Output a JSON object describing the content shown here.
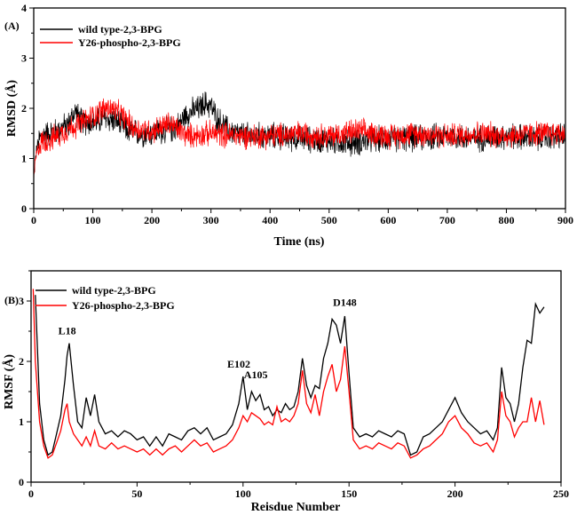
{
  "chart_data": [
    {
      "type": "line",
      "panel_label": "(A)",
      "xlabel": "Time (ns)",
      "ylabel": "RMSD (Å)",
      "xlim": [
        0,
        900
      ],
      "ylim": [
        0,
        4
      ],
      "xticks": [
        0,
        100,
        200,
        300,
        400,
        500,
        600,
        700,
        800,
        900
      ],
      "yticks": [
        0,
        1,
        2,
        3,
        4
      ],
      "legend_position": "top-left",
      "series": [
        {
          "name": "wild type-2,3-BPG",
          "color": "#000000",
          "trend_x": [
            0,
            2,
            5,
            10,
            20,
            40,
            60,
            70,
            80,
            100,
            120,
            140,
            160,
            180,
            200,
            220,
            240,
            260,
            280,
            290,
            300,
            310,
            330,
            360,
            400,
            450,
            500,
            540,
            560,
            600,
            650,
            700,
            750,
            800,
            850,
            900
          ],
          "trend_y": [
            0.6,
            0.9,
            1.2,
            1.4,
            1.5,
            1.55,
            1.7,
            1.95,
            1.75,
            1.7,
            1.8,
            1.75,
            1.55,
            1.5,
            1.5,
            1.55,
            1.6,
            1.9,
            2.0,
            2.1,
            2.05,
            1.8,
            1.55,
            1.45,
            1.45,
            1.4,
            1.35,
            1.3,
            1.35,
            1.4,
            1.4,
            1.45,
            1.4,
            1.45,
            1.4,
            1.45
          ],
          "noise": 0.32
        },
        {
          "name": "Y26-phospho-2,3-BPG",
          "color": "#ff0000",
          "trend_x": [
            0,
            2,
            5,
            10,
            20,
            40,
            60,
            80,
            100,
            120,
            130,
            150,
            170,
            200,
            230,
            260,
            300,
            350,
            400,
            450,
            500,
            550,
            600,
            650,
            700,
            750,
            800,
            850,
            900
          ],
          "trend_y": [
            0.5,
            0.9,
            1.1,
            1.3,
            1.35,
            1.45,
            1.6,
            1.7,
            1.85,
            2.0,
            2.0,
            1.85,
            1.6,
            1.55,
            1.7,
            1.45,
            1.5,
            1.45,
            1.45,
            1.5,
            1.45,
            1.55,
            1.45,
            1.5,
            1.45,
            1.5,
            1.45,
            1.5,
            1.5
          ],
          "noise": 0.3
        }
      ]
    },
    {
      "type": "line",
      "panel_label": "(B)",
      "xlabel": "Reisdue Number",
      "ylabel": "RMSF (Å)",
      "xlim": [
        0,
        250
      ],
      "ylim": [
        0,
        3.5
      ],
      "xticks": [
        0,
        50,
        100,
        150,
        200,
        250
      ],
      "yticks": [
        0,
        1,
        2,
        3
      ],
      "legend_position": "top-left",
      "annotations": [
        {
          "text": "L18",
          "x": 17,
          "y": 2.45
        },
        {
          "text": "E102",
          "x": 98,
          "y": 1.9
        },
        {
          "text": "A105",
          "x": 106,
          "y": 1.72
        },
        {
          "text": "D148",
          "x": 148,
          "y": 2.92
        }
      ],
      "series": [
        {
          "name": "wild type-2,3-BPG",
          "color": "#000000",
          "x": [
            2,
            4,
            6,
            8,
            10,
            12,
            14,
            16,
            17,
            18,
            20,
            22,
            24,
            26,
            28,
            30,
            32,
            35,
            38,
            41,
            44,
            47,
            50,
            53,
            56,
            59,
            62,
            65,
            68,
            71,
            74,
            77,
            80,
            83,
            86,
            89,
            92,
            95,
            98,
            100,
            102,
            104,
            106,
            108,
            110,
            112,
            114,
            116,
            118,
            120,
            122,
            124,
            126,
            128,
            130,
            132,
            134,
            136,
            138,
            140,
            142,
            144,
            146,
            148,
            150,
            152,
            155,
            158,
            161,
            164,
            167,
            170,
            173,
            176,
            179,
            182,
            185,
            188,
            191,
            194,
            197,
            200,
            203,
            206,
            209,
            212,
            215,
            218,
            220,
            222,
            224,
            226,
            228,
            230,
            232,
            234,
            236,
            238,
            240,
            242
          ],
          "y": [
            3.1,
            1.3,
            0.7,
            0.45,
            0.5,
            0.8,
            1.1,
            1.7,
            2.1,
            2.3,
            1.6,
            1.0,
            0.9,
            1.4,
            1.1,
            1.45,
            1.0,
            0.8,
            0.85,
            0.75,
            0.85,
            0.8,
            0.7,
            0.75,
            0.6,
            0.75,
            0.6,
            0.8,
            0.75,
            0.7,
            0.85,
            0.9,
            0.8,
            0.9,
            0.7,
            0.75,
            0.8,
            0.95,
            1.3,
            1.75,
            1.2,
            1.5,
            1.35,
            1.45,
            1.2,
            1.25,
            1.1,
            1.2,
            1.15,
            1.3,
            1.2,
            1.25,
            1.5,
            2.05,
            1.6,
            1.4,
            1.6,
            1.55,
            2.05,
            2.3,
            2.7,
            2.6,
            2.3,
            2.75,
            1.8,
            0.9,
            0.75,
            0.8,
            0.75,
            0.85,
            0.8,
            0.75,
            0.85,
            0.8,
            0.45,
            0.5,
            0.75,
            0.8,
            0.9,
            1.0,
            1.2,
            1.4,
            1.15,
            1.0,
            0.9,
            0.8,
            0.85,
            0.7,
            0.9,
            1.9,
            1.4,
            1.3,
            1.0,
            1.3,
            1.9,
            2.35,
            2.3,
            2.95,
            2.8,
            2.9
          ]
        },
        {
          "name": "Y26-phospho-2,3-BPG",
          "color": "#ff0000",
          "x": [
            1,
            2,
            4,
            6,
            8,
            10,
            12,
            14,
            16,
            17,
            18,
            20,
            22,
            24,
            26,
            28,
            30,
            32,
            35,
            38,
            41,
            44,
            47,
            50,
            53,
            56,
            59,
            62,
            65,
            68,
            71,
            74,
            77,
            80,
            83,
            86,
            89,
            92,
            95,
            98,
            100,
            102,
            104,
            106,
            108,
            110,
            112,
            114,
            116,
            118,
            120,
            122,
            124,
            126,
            128,
            130,
            132,
            134,
            136,
            138,
            140,
            142,
            144,
            146,
            148,
            150,
            152,
            155,
            158,
            161,
            164,
            167,
            170,
            173,
            176,
            179,
            182,
            185,
            188,
            191,
            194,
            197,
            200,
            203,
            206,
            209,
            212,
            215,
            218,
            220,
            222,
            224,
            226,
            228,
            230,
            232,
            234,
            236,
            238,
            240,
            242
          ],
          "y": [
            3.2,
            2.0,
            1.0,
            0.6,
            0.4,
            0.45,
            0.65,
            0.85,
            1.2,
            1.3,
            1.0,
            0.8,
            0.7,
            0.6,
            0.75,
            0.6,
            0.85,
            0.6,
            0.55,
            0.65,
            0.55,
            0.6,
            0.55,
            0.5,
            0.55,
            0.45,
            0.55,
            0.45,
            0.55,
            0.6,
            0.5,
            0.6,
            0.7,
            0.6,
            0.65,
            0.5,
            0.55,
            0.6,
            0.7,
            0.9,
            1.1,
            1.0,
            1.15,
            1.1,
            1.05,
            0.95,
            1.0,
            0.95,
            1.25,
            1.0,
            1.05,
            1.0,
            1.1,
            1.3,
            1.85,
            1.3,
            1.15,
            1.45,
            1.1,
            1.5,
            1.75,
            1.95,
            1.5,
            1.7,
            2.25,
            1.5,
            0.7,
            0.55,
            0.6,
            0.55,
            0.65,
            0.6,
            0.55,
            0.65,
            0.6,
            0.4,
            0.45,
            0.55,
            0.6,
            0.7,
            0.8,
            1.0,
            1.1,
            0.9,
            0.8,
            0.65,
            0.6,
            0.65,
            0.5,
            0.7,
            1.5,
            1.1,
            1.0,
            0.75,
            0.9,
            1.0,
            1.0,
            1.4,
            1.0,
            1.35,
            0.95
          ]
        }
      ]
    }
  ]
}
